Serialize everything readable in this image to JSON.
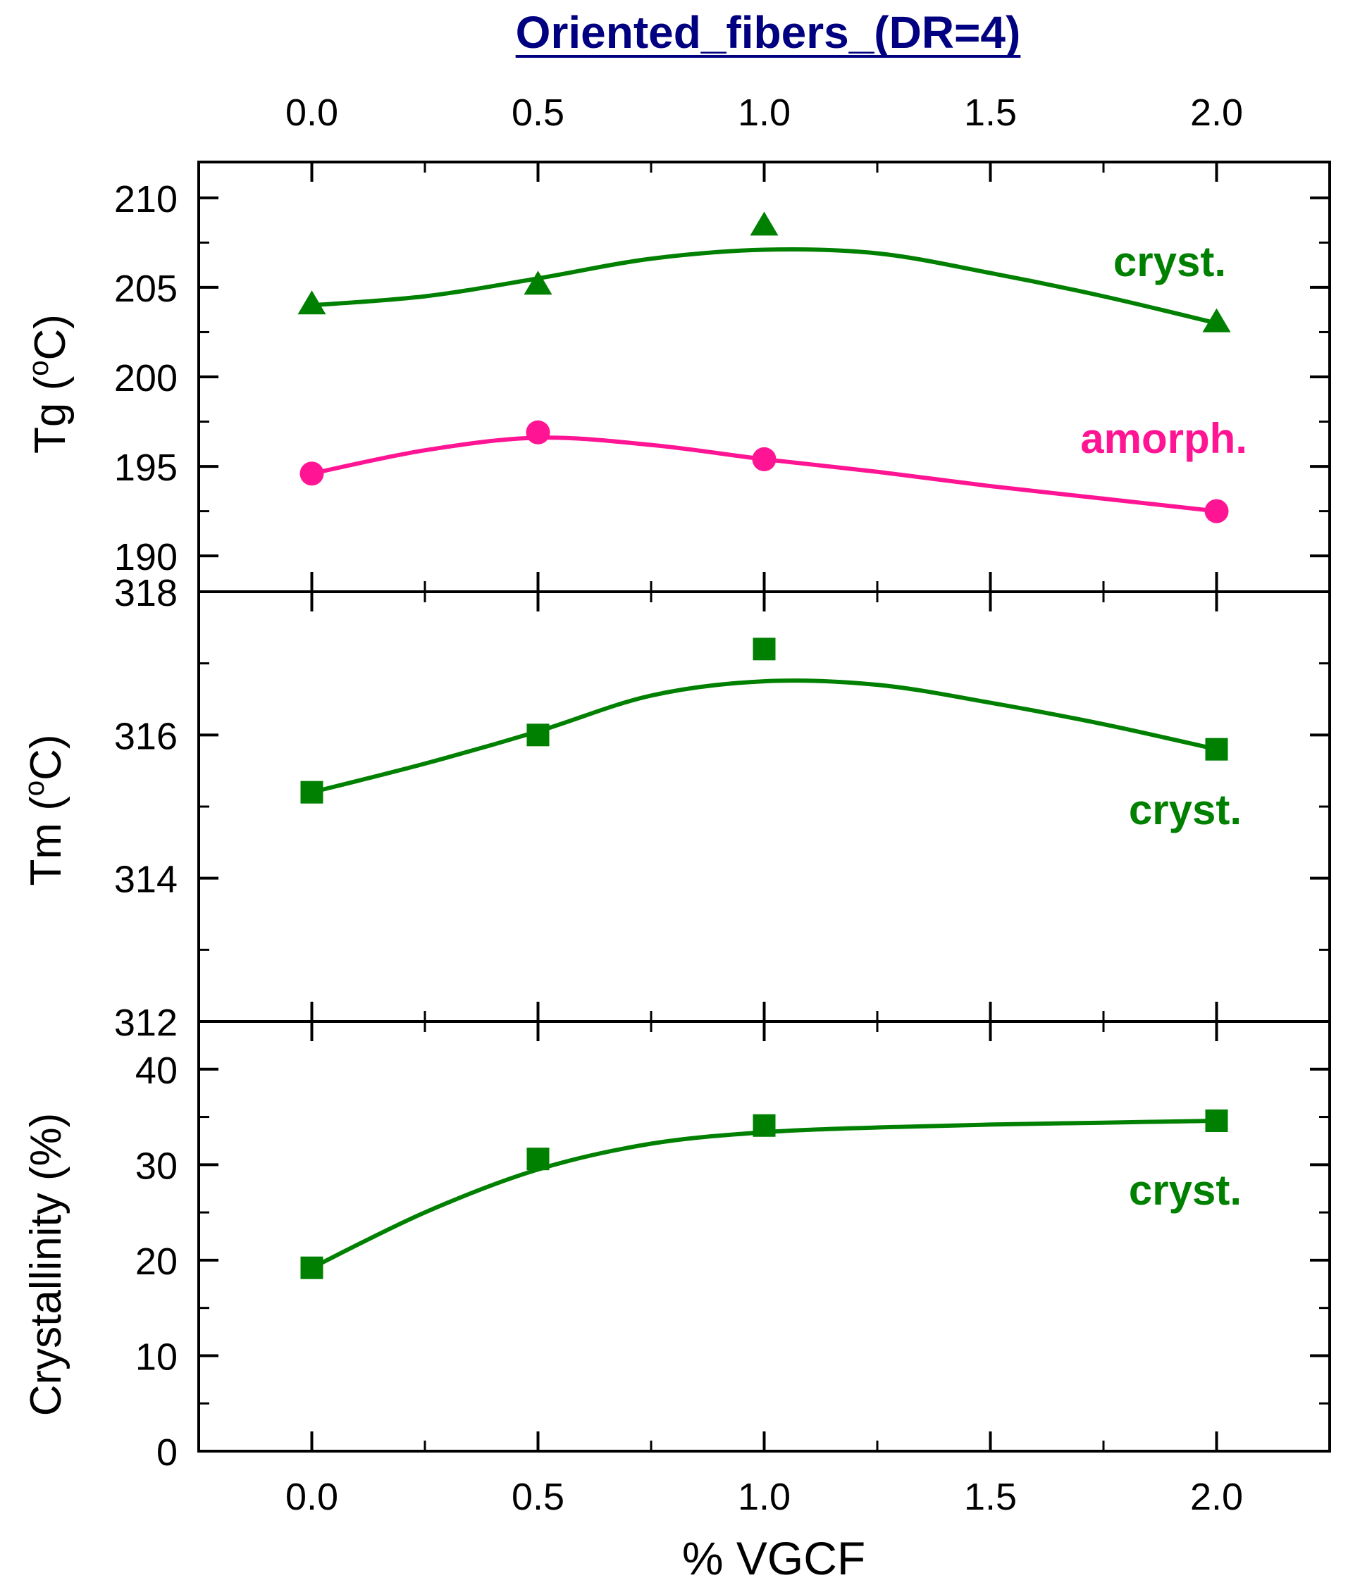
{
  "title": "Oriented_fibers_(DR=4)",
  "xlabel": "% VGCF",
  "colors": {
    "title": "#000080",
    "cryst": "#008000",
    "amorph": "#ff1493",
    "axis": "#000000"
  },
  "chart_data": [
    {
      "type": "line",
      "ylabel": "Tg (°C)",
      "ylabel_base": "Tg (",
      "ylabel_sup": "o",
      "ylabel_end": "C)",
      "ylim": [
        188,
        212
      ],
      "yticks": [
        190,
        195,
        200,
        205,
        210
      ],
      "ytick_labels": [
        "190",
        "195",
        "200",
        "205",
        "210"
      ],
      "xlim": [
        -0.25,
        2.25
      ],
      "series": [
        {
          "name": "cryst.",
          "label": "cryst.",
          "color": "#008000",
          "marker": "triangle",
          "x": [
            0.0,
            0.5,
            1.0,
            2.0
          ],
          "values": [
            204.0,
            205.1,
            208.4,
            203.0
          ],
          "fit_x": [
            0.0,
            0.25,
            0.5,
            0.75,
            1.0,
            1.25,
            1.5,
            1.75,
            2.0
          ],
          "fit_y": [
            204.0,
            204.5,
            205.5,
            206.6,
            207.1,
            206.9,
            205.8,
            204.5,
            203.0
          ]
        },
        {
          "name": "amorph.",
          "label": "amorph.",
          "color": "#ff1493",
          "marker": "circle",
          "x": [
            0.0,
            0.5,
            1.0,
            2.0
          ],
          "values": [
            194.6,
            196.9,
            195.4,
            192.5
          ],
          "fit_x": [
            0.0,
            0.25,
            0.5,
            0.75,
            1.0,
            1.25,
            1.5,
            1.75,
            2.0
          ],
          "fit_y": [
            194.6,
            195.9,
            196.6,
            196.2,
            195.4,
            194.7,
            193.9,
            193.2,
            192.5
          ]
        }
      ]
    },
    {
      "type": "line",
      "ylabel": "Tm (°C)",
      "ylabel_base": "Tm (",
      "ylabel_sup": "o",
      "ylabel_end": "C)",
      "ylim": [
        312,
        318
      ],
      "yticks": [
        312,
        314,
        316,
        318
      ],
      "ytick_labels": [
        "312",
        "314",
        "316",
        "318"
      ],
      "xlim": [
        -0.25,
        2.25
      ],
      "series": [
        {
          "name": "cryst.",
          "label": "cryst.",
          "color": "#008000",
          "marker": "square",
          "x": [
            0.0,
            0.5,
            1.0,
            2.0
          ],
          "values": [
            315.2,
            316.0,
            317.2,
            315.8
          ],
          "fit_x": [
            0.0,
            0.25,
            0.5,
            0.75,
            1.0,
            1.25,
            1.5,
            1.75,
            2.0
          ],
          "fit_y": [
            315.2,
            315.6,
            316.05,
            316.55,
            316.75,
            316.7,
            316.45,
            316.15,
            315.8
          ]
        }
      ]
    },
    {
      "type": "line",
      "ylabel": "Crystallinity (%)",
      "ylim": [
        0,
        45
      ],
      "yticks": [
        0,
        10,
        20,
        30,
        40
      ],
      "ytick_labels": [
        "0",
        "10",
        "20",
        "30",
        "40"
      ],
      "xlim": [
        -0.25,
        2.25
      ],
      "xticks": [
        0.0,
        0.5,
        1.0,
        1.5,
        2.0
      ],
      "xtick_labels": [
        "0.0",
        "0.5",
        "1.0",
        "1.5",
        "2.0"
      ],
      "series": [
        {
          "name": "cryst.",
          "label": "cryst.",
          "color": "#008000",
          "marker": "square",
          "x": [
            0.0,
            0.5,
            1.0,
            2.0
          ],
          "values": [
            19.2,
            30.6,
            34.1,
            34.6
          ],
          "fit_x": [
            0.0,
            0.25,
            0.5,
            0.75,
            1.0,
            1.25,
            1.5,
            1.75,
            2.0
          ],
          "fit_y": [
            19.2,
            25.0,
            29.5,
            32.2,
            33.4,
            33.9,
            34.2,
            34.4,
            34.6
          ]
        }
      ]
    }
  ]
}
